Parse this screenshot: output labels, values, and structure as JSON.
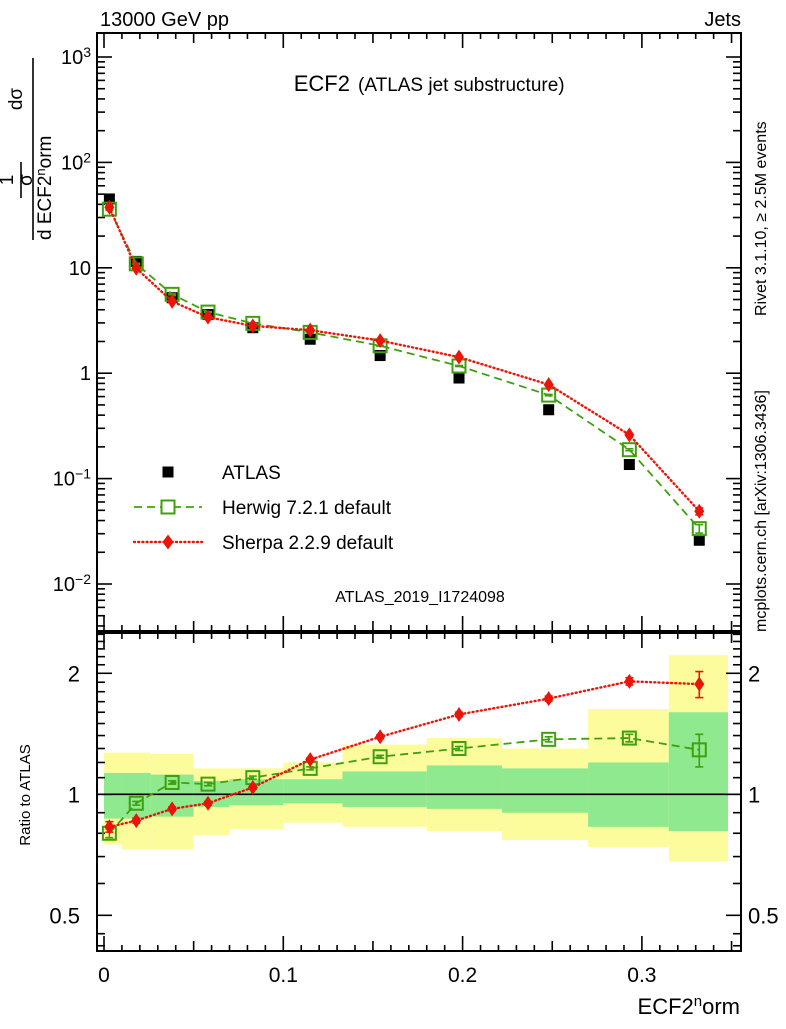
{
  "header": {
    "left": "13000 GeV pp",
    "right": "Jets"
  },
  "title": {
    "main": "ECF2",
    "sub": "(ATLAS jet substructure)"
  },
  "watermark": "ATLAS_2019_I1724098",
  "side_text_top": "Rivet 3.1.10, ≥ 2.5M events",
  "side_text_bottom": "mcplots.cern.ch [arXiv:1306.3436]",
  "ratio_ylabel": "Ratio to ATLAS",
  "ylabel": {
    "one": "1",
    "sigma": "σ",
    "dsigma": "dσ",
    "den_parts": [
      {
        "t": "d ECF2"
      },
      {
        "t": "n",
        "sup": true
      },
      {
        "t": "orm"
      }
    ]
  },
  "xaxis": {
    "title_parts": [
      {
        "t": "ECF2"
      },
      {
        "t": "n",
        "sup": true
      },
      {
        "t": "orm"
      }
    ],
    "ticks": [
      {
        "v": 0,
        "label": "0"
      },
      {
        "v": 0.1,
        "label": "0.1"
      },
      {
        "v": 0.2,
        "label": "0.2"
      },
      {
        "v": 0.3,
        "label": "0.3"
      }
    ],
    "min": -0.004,
    "max": 0.3553
  },
  "yaxis_main": {
    "min": 0.0036,
    "max": 1700,
    "ticks": [
      {
        "v": 1000,
        "parts": [
          {
            "t": "10"
          },
          {
            "t": "3",
            "sup": true
          }
        ]
      },
      {
        "v": 100,
        "parts": [
          {
            "t": "10"
          },
          {
            "t": "2",
            "sup": true
          }
        ]
      },
      {
        "v": 10,
        "parts": [
          {
            "t": "10"
          }
        ]
      },
      {
        "v": 1,
        "parts": [
          {
            "t": "1"
          }
        ]
      },
      {
        "v": 0.1,
        "parts": [
          {
            "t": "10"
          },
          {
            "t": "−1",
            "sup": true
          }
        ]
      },
      {
        "v": 0.01,
        "parts": [
          {
            "t": "10"
          },
          {
            "t": "−2",
            "sup": true
          }
        ]
      }
    ]
  },
  "yaxis_ratio": {
    "min": 0.407,
    "max": 2.52,
    "ticks": [
      {
        "v": 2,
        "label": "2"
      },
      {
        "v": 1,
        "label": "1"
      },
      {
        "v": 0.5,
        "label": "0.5"
      }
    ]
  },
  "legend": [
    {
      "label": "ATLAS",
      "marker": "filled-square",
      "line": "none"
    },
    {
      "label": "Herwig 7.2.1 default",
      "marker": "open-square",
      "line": "dashed"
    },
    {
      "label": "Sherpa 2.2.9 default",
      "marker": "filled-diamond",
      "line": "dotted"
    }
  ],
  "colors": {
    "atlas": "#000000",
    "herwig": "#3fa00e",
    "sherpa": "#ec1409",
    "band_yellow": "#fdfc9c",
    "band_green": "#8fe98f",
    "watermark": "#a9a9a9",
    "side_text": "#8c8c8c"
  },
  "chart_data": [
    {
      "type": "scatter",
      "title": "ECF2 (ATLAS jet substructure)",
      "xlabel": "ECF2norm",
      "ylabel": "1/σ dσ/d ECF2norm",
      "yscale": "log",
      "xlim": [
        -0.004,
        0.3553
      ],
      "ylim": [
        0.0036,
        1700
      ],
      "x": [
        0.003,
        0.018,
        0.038,
        0.058,
        0.083,
        0.115,
        0.154,
        0.198,
        0.248,
        0.293,
        0.332
      ],
      "series": [
        {
          "name": "ATLAS",
          "values": [
            45,
            11.5,
            5.2,
            3.6,
            2.7,
            2.1,
            1.47,
            0.9,
            0.45,
            0.136,
            0.026
          ]
        },
        {
          "name": "Herwig 7.2.1 default",
          "values": [
            36,
            10.9,
            5.6,
            3.8,
            2.97,
            2.44,
            1.82,
            1.17,
            0.62,
            0.188,
            0.0335
          ]
        },
        {
          "name": "Sherpa 2.2.9 default",
          "values": [
            37.5,
            9.9,
            4.8,
            3.4,
            2.81,
            2.56,
            2.04,
            1.42,
            0.78,
            0.26,
            0.049
          ]
        }
      ]
    },
    {
      "type": "ratio",
      "ylabel": "Ratio to ATLAS",
      "yscale": "log",
      "ylim": [
        0.407,
        2.52
      ],
      "x": [
        0.003,
        0.018,
        0.038,
        0.058,
        0.083,
        0.115,
        0.154,
        0.198,
        0.248,
        0.293,
        0.332
      ],
      "series": [
        {
          "name": "Herwig/ATLAS",
          "values": [
            0.8,
            0.95,
            1.07,
            1.06,
            1.1,
            1.16,
            1.24,
            1.3,
            1.37,
            1.38,
            1.29
          ],
          "err": [
            0.02,
            0.01,
            0.01,
            0.01,
            0.01,
            0.01,
            0.01,
            0.015,
            0.02,
            0.03,
            0.12
          ]
        },
        {
          "name": "Sherpa/ATLAS",
          "values": [
            0.83,
            0.86,
            0.92,
            0.95,
            1.04,
            1.22,
            1.39,
            1.58,
            1.73,
            1.91,
            1.88
          ],
          "err": [
            0.025,
            0.012,
            0.01,
            0.01,
            0.01,
            0.012,
            0.015,
            0.02,
            0.025,
            0.04,
            0.14
          ]
        }
      ],
      "bands": {
        "edges": [
          0,
          0.01,
          0.026,
          0.05,
          0.07,
          0.1,
          0.133,
          0.18,
          0.222,
          0.27,
          0.315,
          0.348
        ],
        "yellow_lo": [
          0.75,
          0.73,
          0.73,
          0.79,
          0.82,
          0.85,
          0.83,
          0.81,
          0.77,
          0.74,
          0.68
        ],
        "yellow_hi": [
          1.27,
          1.27,
          1.26,
          1.16,
          1.16,
          1.2,
          1.33,
          1.38,
          1.3,
          1.63,
          2.22
        ],
        "green_lo": [
          0.87,
          0.87,
          0.88,
          0.93,
          0.94,
          0.95,
          0.93,
          0.92,
          0.9,
          0.83,
          0.81
        ],
        "green_hi": [
          1.13,
          1.13,
          1.12,
          1.08,
          1.09,
          1.09,
          1.14,
          1.18,
          1.16,
          1.2,
          1.6
        ]
      }
    }
  ]
}
